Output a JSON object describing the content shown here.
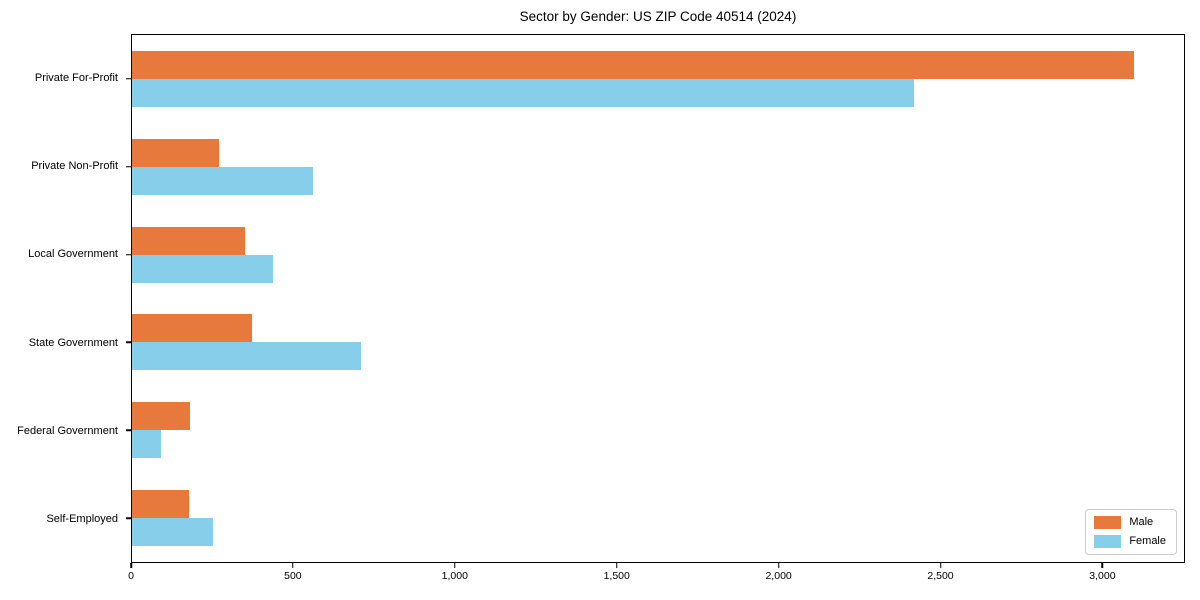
{
  "chart_data": {
    "type": "bar",
    "orientation": "horizontal",
    "title": "Sector by Gender: US ZIP Code 40514 (2024)",
    "categories": [
      "Private For-Profit",
      "Private Non-Profit",
      "Local Government",
      "State Government",
      "Federal Government",
      "Self-Employed"
    ],
    "series": [
      {
        "name": "Male",
        "color": "#e8793d",
        "values": [
          3100,
          270,
          350,
          370,
          180,
          175
        ]
      },
      {
        "name": "Female",
        "color": "#87ceeb",
        "values": [
          2420,
          560,
          435,
          710,
          90,
          250
        ]
      }
    ],
    "xlim": [
      0,
      3255
    ],
    "xticks": [
      0,
      500,
      1000,
      1500,
      2000,
      2500,
      3000
    ],
    "xtick_labels": [
      "0",
      "500",
      "1,000",
      "1,500",
      "2,000",
      "2,500",
      "3,000"
    ],
    "xlabel": "",
    "ylabel": "",
    "grid": false,
    "legend": {
      "position": "lower right",
      "entries": [
        "Male",
        "Female"
      ]
    },
    "colors": {
      "male": "#e8793d",
      "female": "#87ceeb",
      "axis": "#000000",
      "legend_border": "#cccccc",
      "background": "#ffffff"
    }
  }
}
